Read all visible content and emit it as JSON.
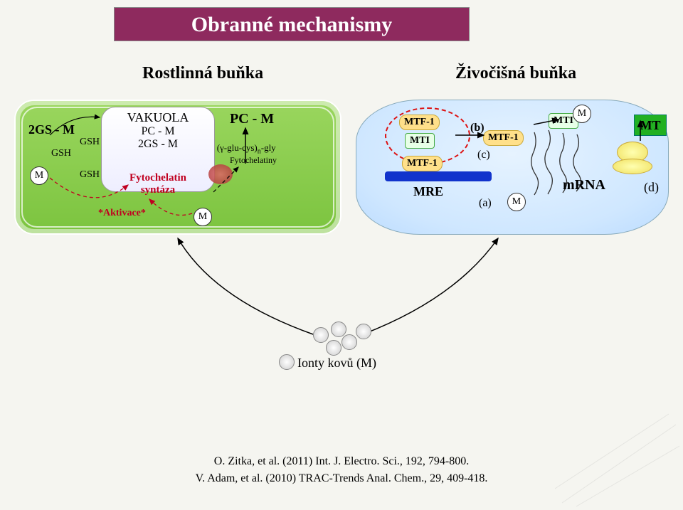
{
  "title": "Obranné mechanismy",
  "subtitle_left": "Rostlinná buňka",
  "subtitle_right": "Živočišná buňka",
  "plant": {
    "vacuole_title": "VAKUOLA",
    "pc_m": "PC - M",
    "gs2_m_in": "2GS - M",
    "gs2_m_out": "2GS - M",
    "gsh": "GSH",
    "pc_label": "PC - M",
    "formula_html": "(γ-glu-cys)<sub>n</sub>-gly",
    "fyto_name": "Fytochelatiny",
    "fyto_syn1": "Fytochelatin",
    "fyto_syn2": "syntáza",
    "aktivace": "*Aktivace*",
    "m": "M"
  },
  "animal": {
    "mtf1": "MTF-1",
    "mti": "MTI",
    "mre": "MRE",
    "mrna": "mRNA",
    "mt": "MT",
    "a": "(a)",
    "b": "(b)",
    "c": "(c)",
    "d": "(d)",
    "m": "M"
  },
  "ions_label": "Ionty kovů (M)",
  "cite1": "O. Zitka, et al. (2011) Int. J. Electro. Sci., 192, 794-800.",
  "cite2": "V. Adam, et al. (2010) TRAC-Trends Anal. Chem., 29, 409-418.",
  "colors": {
    "title_bg": "#8e2a5e",
    "plant_bg": "#8cd24a",
    "animal_bg": "#d6ecff",
    "mtf_fill": "#ffe08a",
    "mti_fill": "#e7ffe7",
    "mre_bar": "#1133cc",
    "mt_box": "#22b022",
    "red": "#c00020"
  }
}
